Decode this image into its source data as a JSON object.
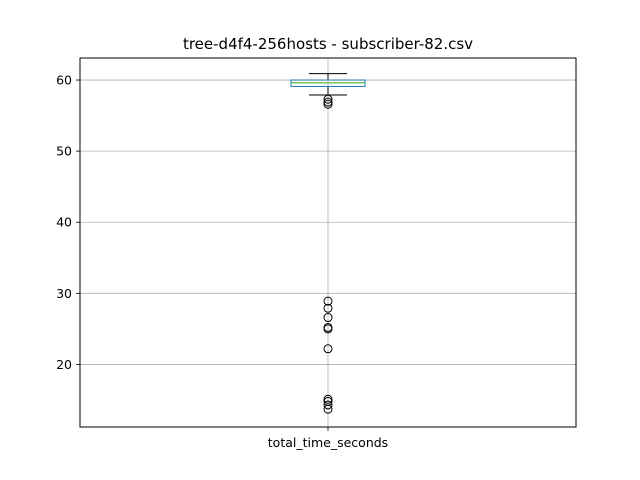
{
  "chart_data": {
    "type": "box",
    "title": "tree-d4f4-256hosts - subscriber-82.csv",
    "categories": [
      "total_time_seconds"
    ],
    "xlabel": "",
    "ylabel": "",
    "ylim": [
      11.2,
      63.1
    ],
    "yticks": [
      20,
      30,
      40,
      50,
      60
    ],
    "grid": true,
    "box": {
      "whisker_low": 57.9,
      "q1": 59.1,
      "median": 59.6,
      "q3": 60.0,
      "whisker_high": 60.9
    },
    "outliers": [
      57.3,
      56.9,
      56.6,
      28.9,
      27.9,
      26.6,
      25.2,
      25.0,
      22.2,
      15.1,
      14.8,
      14.3,
      13.7
    ],
    "colors": {
      "box": "#1f77b4",
      "median": "#2ca02c",
      "whisker": "#000000",
      "grid": "#b0b0b0"
    }
  }
}
